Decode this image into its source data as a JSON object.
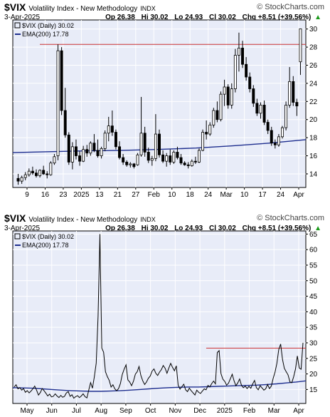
{
  "header": {
    "symbol": "$VIX",
    "name": "Volatility Index - New Methodology",
    "exchange": "INDX",
    "logo": "© StockCharts.com",
    "date": "3-Apr-2025",
    "open": "Op 26.38",
    "high": "Hi 30.02",
    "low": "Lo 24.93",
    "close": "Cl 30.02",
    "change": "Chg +8.51 (+39.56%)",
    "change_arrow": "▲"
  },
  "legend": {
    "price": "$VIX (Daily) 30.02",
    "ema": "EMA(200) 17.78"
  },
  "colors": {
    "ema": "#1f2f8f",
    "resistance": "#cc3333",
    "up_arrow": "#1a9a1a",
    "panel_bg": "#e8ecf8"
  },
  "chart_data": [
    {
      "type": "candlestick",
      "title": "$VIX Volatility Index - New Methodology INDX (Daily)",
      "x_tick_labels": [
        "9",
        "16",
        "23",
        "2025",
        "13",
        "21",
        "27",
        "Feb",
        "10",
        "18",
        "24",
        "Mar",
        "10",
        "17",
        "24",
        "Apr"
      ],
      "ylim": [
        12.5,
        31
      ],
      "y_ticks": [
        14,
        16,
        18,
        20,
        22,
        24,
        26,
        28,
        30
      ],
      "resistance_level": 28.3,
      "ema_level_end": 17.78,
      "candles": [
        {
          "o": 13.5,
          "h": 14.0,
          "l": 12.8,
          "c": 13.2
        },
        {
          "o": 13.2,
          "h": 13.8,
          "l": 12.9,
          "c": 13.6
        },
        {
          "o": 13.6,
          "h": 14.2,
          "l": 13.3,
          "c": 13.9
        },
        {
          "o": 13.9,
          "h": 14.6,
          "l": 13.7,
          "c": 14.3
        },
        {
          "o": 14.3,
          "h": 14.8,
          "l": 13.9,
          "c": 14.1
        },
        {
          "o": 14.1,
          "h": 14.5,
          "l": 13.6,
          "c": 13.8
        },
        {
          "o": 13.8,
          "h": 14.5,
          "l": 13.6,
          "c": 14.4
        },
        {
          "o": 14.4,
          "h": 14.9,
          "l": 13.9,
          "c": 14.0
        },
        {
          "o": 14.0,
          "h": 14.3,
          "l": 13.5,
          "c": 13.9
        },
        {
          "o": 13.9,
          "h": 15.4,
          "l": 13.8,
          "c": 15.2
        },
        {
          "o": 15.2,
          "h": 16.2,
          "l": 15.0,
          "c": 15.9
        },
        {
          "o": 16.0,
          "h": 28.3,
          "l": 15.5,
          "c": 27.6
        },
        {
          "o": 27.6,
          "h": 28.0,
          "l": 20.5,
          "c": 21.0
        },
        {
          "o": 21.0,
          "h": 23.5,
          "l": 18.0,
          "c": 18.3
        },
        {
          "o": 18.3,
          "h": 18.6,
          "l": 15.0,
          "c": 15.3
        },
        {
          "o": 15.3,
          "h": 17.5,
          "l": 14.5,
          "c": 17.0
        },
        {
          "o": 17.0,
          "h": 17.8,
          "l": 15.6,
          "c": 16.0
        },
        {
          "o": 16.0,
          "h": 16.5,
          "l": 14.9,
          "c": 15.4
        },
        {
          "o": 15.4,
          "h": 17.1,
          "l": 15.3,
          "c": 16.7
        },
        {
          "o": 16.7,
          "h": 17.2,
          "l": 15.9,
          "c": 16.3
        },
        {
          "o": 16.3,
          "h": 17.6,
          "l": 16.0,
          "c": 17.4
        },
        {
          "o": 17.4,
          "h": 18.4,
          "l": 16.4,
          "c": 16.6
        },
        {
          "o": 16.6,
          "h": 17.8,
          "l": 15.8,
          "c": 16.0
        },
        {
          "o": 16.0,
          "h": 17.0,
          "l": 15.7,
          "c": 16.8
        },
        {
          "o": 16.8,
          "h": 18.8,
          "l": 16.5,
          "c": 18.5
        },
        {
          "o": 18.5,
          "h": 20.3,
          "l": 17.6,
          "c": 19.3
        },
        {
          "o": 19.3,
          "h": 21.0,
          "l": 18.2,
          "c": 18.6
        },
        {
          "o": 18.6,
          "h": 18.9,
          "l": 16.7,
          "c": 17.0
        },
        {
          "o": 17.0,
          "h": 17.6,
          "l": 15.6,
          "c": 15.8
        },
        {
          "o": 15.8,
          "h": 16.2,
          "l": 15.0,
          "c": 15.3
        },
        {
          "o": 15.3,
          "h": 15.5,
          "l": 14.8,
          "c": 15.0
        },
        {
          "o": 15.0,
          "h": 15.3,
          "l": 14.7,
          "c": 15.1
        },
        {
          "o": 15.1,
          "h": 15.2,
          "l": 14.6,
          "c": 14.8
        },
        {
          "o": 15.0,
          "h": 16.3,
          "l": 14.9,
          "c": 16.1
        },
        {
          "o": 16.1,
          "h": 22.5,
          "l": 15.9,
          "c": 18.5
        },
        {
          "o": 18.5,
          "h": 19.2,
          "l": 15.9,
          "c": 16.4
        },
        {
          "o": 16.4,
          "h": 16.9,
          "l": 15.2,
          "c": 15.5
        },
        {
          "o": 15.5,
          "h": 16.0,
          "l": 14.9,
          "c": 15.7
        },
        {
          "o": 15.7,
          "h": 20.6,
          "l": 15.4,
          "c": 18.4
        },
        {
          "o": 18.4,
          "h": 18.9,
          "l": 15.8,
          "c": 16.1
        },
        {
          "o": 16.1,
          "h": 16.6,
          "l": 15.2,
          "c": 15.4
        },
        {
          "o": 15.4,
          "h": 16.3,
          "l": 14.8,
          "c": 16.0
        },
        {
          "o": 16.0,
          "h": 16.7,
          "l": 15.0,
          "c": 15.3
        },
        {
          "o": 15.3,
          "h": 16.6,
          "l": 15.1,
          "c": 16.4
        },
        {
          "o": 16.4,
          "h": 17.0,
          "l": 15.6,
          "c": 15.8
        },
        {
          "o": 15.8,
          "h": 16.2,
          "l": 15.0,
          "c": 15.2
        },
        {
          "o": 15.2,
          "h": 15.4,
          "l": 14.9,
          "c": 15.0
        },
        {
          "o": 15.0,
          "h": 15.3,
          "l": 14.6,
          "c": 14.9
        },
        {
          "o": 14.9,
          "h": 15.6,
          "l": 14.8,
          "c": 15.4
        },
        {
          "o": 15.4,
          "h": 15.9,
          "l": 15.1,
          "c": 15.3
        },
        {
          "o": 15.3,
          "h": 16.8,
          "l": 15.2,
          "c": 16.6
        },
        {
          "o": 16.6,
          "h": 18.9,
          "l": 16.5,
          "c": 18.6
        },
        {
          "o": 18.6,
          "h": 19.9,
          "l": 17.8,
          "c": 18.4
        },
        {
          "o": 18.4,
          "h": 19.7,
          "l": 18.2,
          "c": 19.4
        },
        {
          "o": 19.4,
          "h": 21.3,
          "l": 19.1,
          "c": 21.0
        },
        {
          "o": 21.0,
          "h": 22.0,
          "l": 19.7,
          "c": 20.0
        },
        {
          "o": 20.0,
          "h": 23.1,
          "l": 19.8,
          "c": 22.8
        },
        {
          "o": 22.8,
          "h": 24.4,
          "l": 21.5,
          "c": 23.6
        },
        {
          "o": 23.6,
          "h": 23.9,
          "l": 21.2,
          "c": 21.6
        },
        {
          "o": 21.6,
          "h": 24.0,
          "l": 21.2,
          "c": 23.4
        },
        {
          "o": 23.4,
          "h": 27.8,
          "l": 23.0,
          "c": 27.1
        },
        {
          "o": 27.1,
          "h": 29.6,
          "l": 25.3,
          "c": 27.9
        },
        {
          "o": 27.9,
          "h": 28.7,
          "l": 25.7,
          "c": 26.1
        },
        {
          "o": 26.1,
          "h": 26.9,
          "l": 24.3,
          "c": 24.7
        },
        {
          "o": 24.7,
          "h": 25.2,
          "l": 23.0,
          "c": 23.4
        },
        {
          "o": 23.4,
          "h": 23.8,
          "l": 21.4,
          "c": 21.8
        },
        {
          "o": 21.8,
          "h": 22.3,
          "l": 20.4,
          "c": 20.7
        },
        {
          "o": 20.7,
          "h": 21.9,
          "l": 20.1,
          "c": 21.6
        },
        {
          "o": 21.6,
          "h": 22.1,
          "l": 19.4,
          "c": 19.7
        },
        {
          "o": 19.7,
          "h": 20.0,
          "l": 18.4,
          "c": 18.8
        },
        {
          "o": 18.8,
          "h": 19.2,
          "l": 17.1,
          "c": 17.4
        },
        {
          "o": 17.4,
          "h": 17.8,
          "l": 16.8,
          "c": 17.2
        },
        {
          "o": 17.2,
          "h": 18.4,
          "l": 17.0,
          "c": 18.1
        },
        {
          "o": 18.1,
          "h": 19.3,
          "l": 17.9,
          "c": 19.1
        },
        {
          "o": 19.1,
          "h": 22.0,
          "l": 18.8,
          "c": 21.6
        },
        {
          "o": 21.6,
          "h": 25.8,
          "l": 21.3,
          "c": 24.2
        },
        {
          "o": 24.2,
          "h": 24.8,
          "l": 21.5,
          "c": 21.9
        },
        {
          "o": 21.9,
          "h": 22.3,
          "l": 20.4,
          "c": 21.5
        },
        {
          "o": 26.38,
          "h": 30.02,
          "l": 24.93,
          "c": 30.02
        }
      ],
      "ema": [
        16.35,
        16.45,
        16.55,
        16.6,
        16.7,
        16.85,
        17.1,
        17.4,
        17.78
      ]
    },
    {
      "type": "line",
      "title": "$VIX Volatility Index - New Methodology INDX (Daily)",
      "x_tick_labels": [
        "May",
        "Jun",
        "Jul",
        "Aug",
        "Sep",
        "Oct",
        "Nov",
        "Dec",
        "2025",
        "Feb",
        "Mar",
        "Apr"
      ],
      "ylim": [
        10.5,
        66
      ],
      "y_ticks": [
        10,
        15,
        20,
        25,
        30,
        35,
        40,
        45,
        50,
        55,
        60,
        65
      ],
      "resistance_level": 28.3,
      "ema_level_end": 17.78,
      "values": [
        15.8,
        16.5,
        15.2,
        15.6,
        14.8,
        15.3,
        14.1,
        14.6,
        13.9,
        14.5,
        15.2,
        16.1,
        14.8,
        13.2,
        14.0,
        15.3,
        14.6,
        13.8,
        12.9,
        13.5,
        12.6,
        12.8,
        13.6,
        12.9,
        12.4,
        13.1,
        12.5,
        12.8,
        13.9,
        14.3,
        12.8,
        13.3,
        12.2,
        12.7,
        13.0,
        12.4,
        12.9,
        13.6,
        12.7,
        12.3,
        14.8,
        17.2,
        15.4,
        19.0,
        23.5,
        38.6,
        65.0,
        28.3,
        27.0,
        20.7,
        19.1,
        17.9,
        15.8,
        16.5,
        15.2,
        14.6,
        15.3,
        16.9,
        19.8,
        21.5,
        22.9,
        18.1,
        17.4,
        16.2,
        17.6,
        19.9,
        20.7,
        22.4,
        19.5,
        17.8,
        16.6,
        17.4,
        18.6,
        19.3,
        20.9,
        21.6,
        20.2,
        19.5,
        20.6,
        21.4,
        22.7,
        21.8,
        20.2,
        21.9,
        23.4,
        22.1,
        21.0,
        22.6,
        16.4,
        15.1,
        15.9,
        16.7,
        14.9,
        14.3,
        15.4,
        14.6,
        13.9,
        13.2,
        14.8,
        14.1,
        13.7,
        14.5,
        15.2,
        14.9,
        16.3,
        15.8,
        16.9,
        17.7,
        16.8,
        26.9,
        27.5,
        20.1,
        18.3,
        17.6,
        16.4,
        17.0,
        18.4,
        19.9,
        17.8,
        16.2,
        17.1,
        18.4,
        16.3,
        15.6,
        16.1,
        15.3,
        16.0,
        15.4,
        16.8,
        17.9,
        15.6,
        14.9,
        16.2,
        15.5,
        14.8,
        15.2,
        16.6,
        15.3,
        16.1,
        18.6,
        20.6,
        23.4,
        27.8,
        29.6,
        24.7,
        21.8,
        20.7,
        19.7,
        17.4,
        17.2,
        19.1,
        21.6,
        25.8,
        21.9,
        21.5,
        30.02
      ],
      "ema_values": [
        15.6,
        15.5,
        15.4,
        15.2,
        15.0,
        14.8,
        14.6,
        14.5,
        14.4,
        14.4,
        14.5,
        14.6,
        14.8,
        15.0,
        15.2,
        15.4,
        15.6,
        15.7,
        15.8,
        15.8,
        15.9,
        16.0,
        16.1,
        16.2,
        16.3,
        16.4,
        16.6,
        16.8,
        17.1,
        17.4,
        17.78
      ]
    }
  ]
}
